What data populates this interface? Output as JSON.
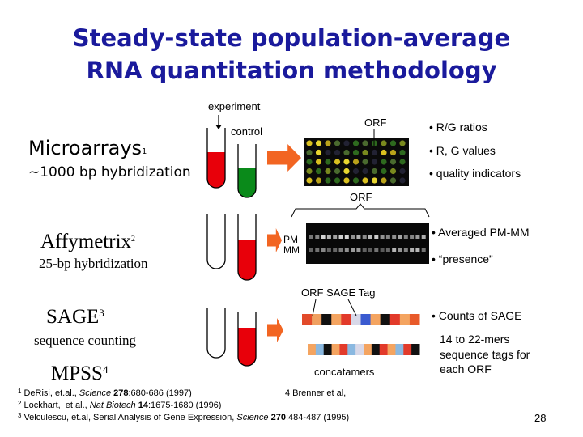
{
  "title": {
    "lines": [
      "Steady-state population-average",
      "RNA quantitation methodology"
    ]
  },
  "microarrays": {
    "label": "Microarrays",
    "ref": "1",
    "subtitle": "~1000 bp hybridization",
    "experiment": "experiment",
    "control": "control",
    "orf": "ORF",
    "bullets": [
      "• R/G ratios",
      "• R, G values",
      "• quality indicators"
    ]
  },
  "affymetrix": {
    "label": "Affymetrix",
    "ref": "2",
    "subtitle": "25-bp hybridization",
    "orf": "ORF",
    "probes": [
      "PM",
      "MM"
    ],
    "bullets": [
      "• Averaged PM-MM",
      "• “presence”"
    ]
  },
  "sage": {
    "label": "SAGE",
    "ref": "3",
    "subtitle": "sequence counting",
    "tag_label": "ORF SAGE Tag",
    "concatamers": "concatamers",
    "bullets": [
      "• Counts of SAGE"
    ],
    "note": [
      "14 to 22-mers",
      "sequence tags for",
      "each ORF"
    ]
  },
  "mpss": {
    "label": "MPSS",
    "ref": "4"
  },
  "references": [
    {
      "num": "1",
      "parts": [
        "DeRisi, et.al., ",
        "Science ",
        "278",
        ":680-686 (1997)"
      ]
    },
    {
      "num": "2",
      "parts": [
        "Lockhart,  et.al., ",
        "Nat Biotech ",
        "14",
        ":1675-1680 (1996)"
      ]
    },
    {
      "num": "3",
      "parts": [
        "Velculescu, et.al, Serial Analysis of Gene Expression, ",
        "Science ",
        "270",
        ":484-487 (1995)"
      ]
    }
  ],
  "ref4": "4 Brenner et al,",
  "page_number": "28"
}
